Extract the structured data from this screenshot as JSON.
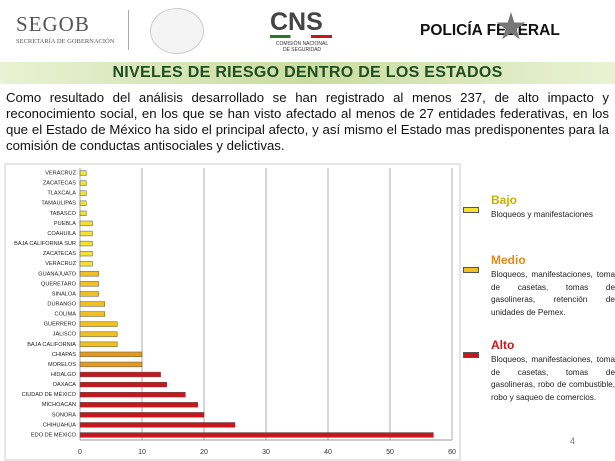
{
  "header": {
    "segob": "SEGOB",
    "segob_subtitle": "SECRETARÍA DE GOBERNACIÓN",
    "cns": "CNS",
    "cns_subtitle": "COMISIÓN NACIONAL DE SEGURIDAD",
    "policia": "POLICÍA FEDERAL"
  },
  "title": "NIVELES DE RIESGO DENTRO DE LOS ESTADOS",
  "paragraph": "Como resultado del análisis desarrollado se han registrado al menos 237, de alto impacto y reconocimiento social, en los que se han visto afectado al menos de 27 entidades federativas, en los que el Estado de México ha sido el principal afecto, y así mismo el Estado mas predisponentes para la comisión de conductas antisociales y delictivas.",
  "page_number": "4",
  "chart_data": {
    "type": "hbar",
    "categories": [
      "VERACRUZ",
      "ZACATECAS",
      "TLAXCALA",
      "TAMAULIPAS",
      "TABASCO",
      "PUEBLA",
      "COAHUILA",
      "BAJA CALIFORNIA SUR",
      "ZACATECAS",
      "VERACRUZ",
      "GUANAJUATO",
      "QUERETARO",
      "SINALOA",
      "DURANGO",
      "COLIMA",
      "GUERRERO",
      "JALISCO",
      "BAJA CALIFORNIA",
      "CHIAPAS",
      "MORELOS",
      "HIDALGO",
      "OAXACA",
      "CIUDAD DE MÉXICO",
      "MICHOACAN",
      "SONORA",
      "CHIHUAHUA",
      "EDO DE MEXICO"
    ],
    "values": [
      1,
      1,
      1,
      1,
      1,
      2,
      2,
      2,
      2,
      2,
      3,
      3,
      3,
      4,
      4,
      6,
      6,
      6,
      10,
      10,
      13,
      14,
      17,
      19,
      20,
      25,
      57
    ],
    "colors": [
      "#f3e32e",
      "#f3e32e",
      "#f3e32e",
      "#f3e32e",
      "#f3e32e",
      "#f3e32e",
      "#f3e32e",
      "#f3e32e",
      "#f3e32e",
      "#f3e32e",
      "#f0c020",
      "#f0c020",
      "#f0c020",
      "#f0c020",
      "#f0c020",
      "#f0c020",
      "#f0c020",
      "#f0c020",
      "#e39a1c",
      "#e39a1c",
      "#c8161d",
      "#c8161d",
      "#c8161d",
      "#c8161d",
      "#c8161d",
      "#c8161d",
      "#c8161d"
    ],
    "xlim": [
      0,
      60
    ],
    "xticks": [
      0,
      10,
      20,
      30,
      40,
      50,
      60
    ],
    "grid": true,
    "legend": [
      {
        "name": "Bajo",
        "color": "#f3e32e",
        "description": "Bloqueos y manifestaciones"
      },
      {
        "name": "Medio",
        "color": "#f0c020",
        "description": "Bloqueos, manifestaciones, toma de casetas, tomas de gasolineras, retención de unidades de Pemex."
      },
      {
        "name": "Alto",
        "color": "#c8161d",
        "description": "Bloqueos, manifestaciones, toma de casetas, tomas de gasolineras, robo de combustible, robo y saqueo de comercios."
      }
    ]
  }
}
